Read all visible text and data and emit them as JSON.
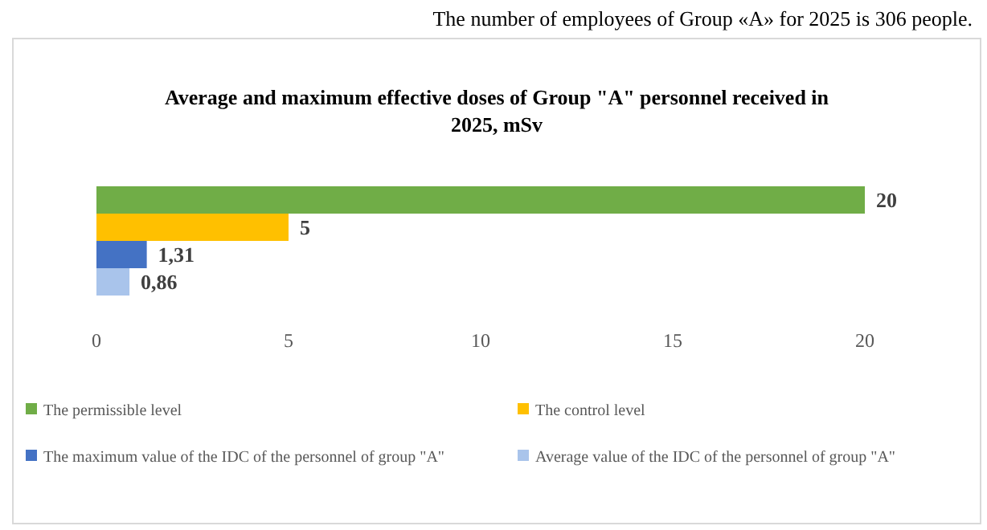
{
  "chart_data": {
    "type": "bar",
    "orientation": "horizontal",
    "title": "Average and maximum effective doses of Group \"A\" personnel received in 2025, mSv",
    "annotations": [
      "The number of employees of Group «A» for 2025 is 306 people."
    ],
    "categories": [
      null
    ],
    "series": [
      {
        "name": "The permissible level",
        "color": "#70ad47",
        "values": [
          20
        ],
        "value_labels": [
          "20"
        ]
      },
      {
        "name": "The control level",
        "color": "#ffc000",
        "values": [
          5
        ],
        "value_labels": [
          "5"
        ]
      },
      {
        "name": "The maximum value of the IDC of the personnel of group \"A\"",
        "color": "#4472c4",
        "values": [
          1.31
        ],
        "value_labels": [
          "1,31"
        ]
      },
      {
        "name": "Average value of the IDC of the personnel of group \"A\"",
        "color": "#a9c4eb",
        "values": [
          0.86
        ],
        "value_labels": [
          "0,86"
        ]
      }
    ],
    "xlim": [
      0,
      20
    ],
    "xticks": [
      0,
      5,
      10,
      15,
      20
    ],
    "grid": false,
    "legend": "bottom"
  }
}
